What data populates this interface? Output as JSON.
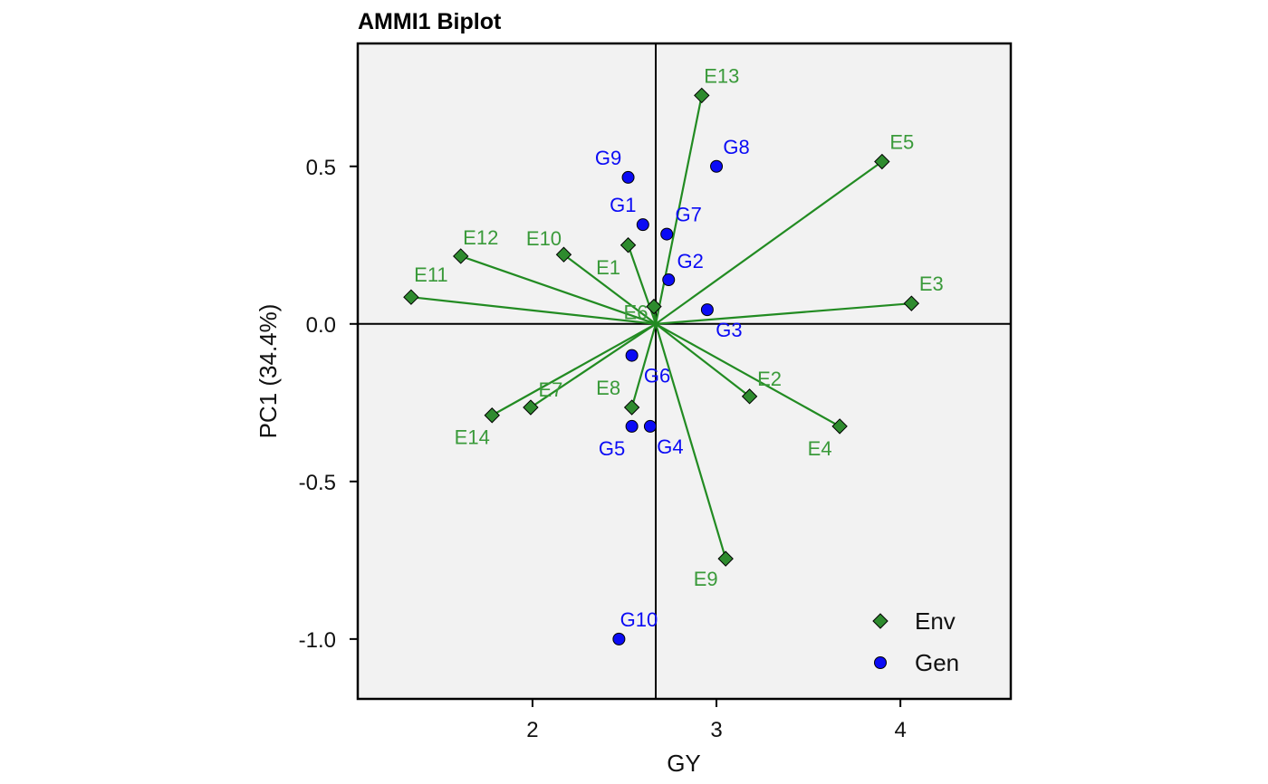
{
  "chart_data": {
    "type": "scatter",
    "title": "AMMI1 Biplot",
    "xlabel": "GY",
    "ylabel": "PC1 (34.4%)",
    "xlim": [
      1.05,
      4.6
    ],
    "ylim": [
      -1.19,
      0.89
    ],
    "x_ticks": [
      2,
      3,
      4
    ],
    "x_tick_labels": [
      "2",
      "3",
      "4"
    ],
    "y_ticks": [
      0.5,
      0.0,
      -0.5,
      -1.0
    ],
    "y_tick_labels": [
      "0.5",
      "0.0",
      "-0.5",
      "-1.0"
    ],
    "grid": false,
    "panel_background": "#f2f2f2",
    "reference_lines": {
      "x": 2.67,
      "y": 0.0
    },
    "origin": [
      2.67,
      0.0
    ],
    "legend": {
      "placement": "bottom-right",
      "entries": [
        {
          "name": "Env",
          "shape": "diamond",
          "color": "#2e8b2e"
        },
        {
          "name": "Gen",
          "shape": "circle",
          "color": "#0b0bf5"
        }
      ]
    },
    "colors": {
      "env": "#2e8b2e",
      "env_label": "#3a9a3a",
      "gen": "#0b0bf5",
      "segment": "#228b22"
    },
    "series": [
      {
        "name": "Env",
        "shape": "diamond",
        "points": [
          {
            "label": "E1",
            "x": 2.52,
            "y": 0.25
          },
          {
            "label": "E2",
            "x": 3.18,
            "y": -0.23
          },
          {
            "label": "E3",
            "x": 4.06,
            "y": 0.065
          },
          {
            "label": "E4",
            "x": 3.67,
            "y": -0.325
          },
          {
            "label": "E5",
            "x": 3.9,
            "y": 0.515
          },
          {
            "label": "E6",
            "x": 2.66,
            "y": 0.055
          },
          {
            "label": "E7",
            "x": 1.99,
            "y": -0.265
          },
          {
            "label": "E8",
            "x": 2.54,
            "y": -0.265
          },
          {
            "label": "E9",
            "x": 3.05,
            "y": -0.745
          },
          {
            "label": "E10",
            "x": 2.17,
            "y": 0.22
          },
          {
            "label": "E11",
            "x": 1.34,
            "y": 0.085
          },
          {
            "label": "E12",
            "x": 1.61,
            "y": 0.215
          },
          {
            "label": "E13",
            "x": 2.92,
            "y": 0.725
          },
          {
            "label": "E14",
            "x": 1.78,
            "y": -0.29
          }
        ]
      },
      {
        "name": "Gen",
        "shape": "circle",
        "points": [
          {
            "label": "G1",
            "x": 2.6,
            "y": 0.315
          },
          {
            "label": "G2",
            "x": 2.74,
            "y": 0.14
          },
          {
            "label": "G3",
            "x": 2.95,
            "y": 0.045
          },
          {
            "label": "G4",
            "x": 2.64,
            "y": -0.325
          },
          {
            "label": "G5",
            "x": 2.54,
            "y": -0.325
          },
          {
            "label": "G6",
            "x": 2.54,
            "y": -0.1
          },
          {
            "label": "G7",
            "x": 2.73,
            "y": 0.285
          },
          {
            "label": "G8",
            "x": 3.0,
            "y": 0.5
          },
          {
            "label": "G9",
            "x": 2.52,
            "y": 0.465
          },
          {
            "label": "G10",
            "x": 2.47,
            "y": -1.0
          }
        ]
      }
    ]
  }
}
